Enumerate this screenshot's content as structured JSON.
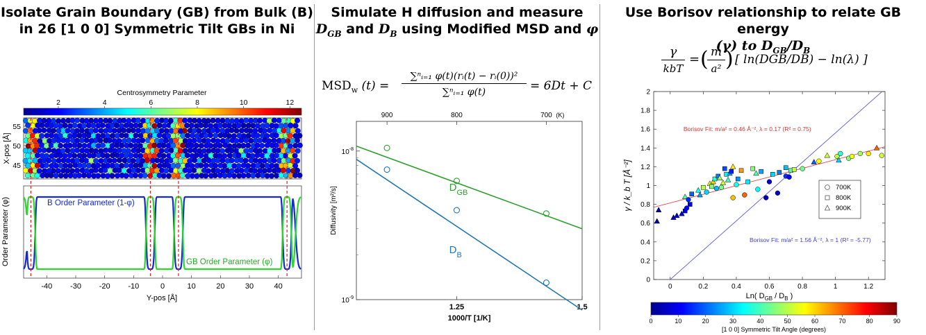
{
  "panel_a": {
    "title_line1": "Isolate Grain Boundary (GB) from Bulk (B)",
    "title_line2": "in 26 [1 0 0] Symmetric Tilt GBs in Ni",
    "colorbar": {
      "label": "Centrosymmetry Parameter",
      "ticks": [
        "2",
        "4",
        "6",
        "8",
        "10",
        "12"
      ],
      "range": [
        0.5,
        12.5
      ]
    },
    "atoms": {
      "ylabel": "X-pos [Å]",
      "yticks": [
        "55",
        "50",
        "45"
      ]
    },
    "order": {
      "ylabel": "Order Parameter (φ)",
      "xlabel": "Y-pos [Å]",
      "xticks": [
        "-40",
        "-30",
        "-20",
        "-10",
        "0",
        "10",
        "20",
        "30",
        "40"
      ],
      "b_label": "B Order Parameter (1-φ)",
      "gb_label": "GB Order Parameter (φ)",
      "gb_positions": [
        -45.5,
        -4.2,
        5.5,
        43.0
      ],
      "colors": {
        "b": "#1428d8",
        "gb": "#28d82a",
        "gb_line": "#e02020"
      }
    }
  },
  "panel_b": {
    "title_line1": "Simulate H diffusion and measure",
    "title_line2_sym1": "D",
    "title_line2_sub1": "GB",
    "title_line2_mid": " and ",
    "title_line2_sym2": "D",
    "title_line2_sub2": "B",
    "title_line2_tail": " using Modified MSD and ",
    "title_line2_phi": "φ",
    "equation": {
      "lhs": "MSD",
      "lhs_sub": "w",
      "lhs_arg": "(t) =",
      "numerator": "∑ⁿᵢ₌₁ φ(t)(rᵢ(t) − rᵢ(0))²",
      "denominator": "∑ⁿᵢ₌₁ φ(t)",
      "rhs": "= 6Dt + C"
    }
  },
  "panel_c": {
    "title_line1": "Use Borisov relationship to relate GB energy",
    "title_line2_a": "(γ) to ",
    "title_line2_sym1": "D",
    "title_line2_sub1": "GB",
    "title_line2_sep": "/",
    "title_line2_sym2": "D",
    "title_line2_sub2": "B",
    "equation": {
      "lhs_num": "γ",
      "lhs_den": "kbT",
      "eq": "=",
      "m_num": "m",
      "m_den": "a²",
      "bracket": "[ ln(DGB/DB) − ln(λ) ]"
    },
    "colorbar": {
      "label": "[1 0 0] Symmetric Tilt Angle (degrees)",
      "ticks": [
        "0",
        "10",
        "20",
        "30",
        "40",
        "50",
        "60",
        "70",
        "80",
        "90"
      ],
      "range": [
        0,
        90
      ]
    },
    "legend": {
      "items": [
        "700K",
        "800K",
        "900K"
      ]
    }
  },
  "chart_data": [
    {
      "type": "line",
      "id": "diffusivity",
      "xlabel": "1000/T [1/K]",
      "ylabel": "Diffusivity [m²/s]",
      "xlim": [
        1.05,
        1.5
      ],
      "ylim_log10": [
        -9,
        -7.8
      ],
      "x_ticks": [
        {
          "value": 1.25,
          "label": "1.25"
        },
        {
          "value": 1.5,
          "label": "1.5"
        }
      ],
      "y_ticks": [
        {
          "value": -8,
          "label": "10",
          "sup": "-8"
        },
        {
          "value": -9,
          "label": "10",
          "sup": "-9"
        }
      ],
      "top_axis": {
        "ticks": [
          {
            "T": 900,
            "label": "900"
          },
          {
            "T": 800,
            "label": "800"
          },
          {
            "T": 700,
            "label": "700"
          }
        ],
        "unit": "(K)"
      },
      "series": [
        {
          "name": "D_GB",
          "label_main": "D",
          "label_sub": "GB",
          "color": "#2aa02a",
          "x": [
            1.111,
            1.25,
            1.4286
          ],
          "y": [
            1.05e-08,
            6.3e-09,
            3.8e-09
          ],
          "fit": [
            [
              1.05,
              1.08e-08
            ],
            [
              1.5,
              3e-09
            ]
          ],
          "label_at": [
            1.235,
            5.4e-09
          ]
        },
        {
          "name": "D_B",
          "label_main": "D",
          "label_sub": "B",
          "color": "#1f77b4",
          "x": [
            1.111,
            1.25,
            1.4286
          ],
          "y": [
            7.5e-09,
            4e-09,
            1.3e-09
          ],
          "fit": [
            [
              1.05,
              8.8e-09
            ],
            [
              1.5,
              8.5e-10
            ]
          ],
          "label_at": [
            1.235,
            2.05e-09
          ]
        }
      ]
    },
    {
      "type": "scatter",
      "id": "borisov",
      "xlabel": "Ln( D_GB / D_B )",
      "xlabel_main": "Ln( D",
      "xlabel_sub1": "GB",
      "xlabel_mid": " / D",
      "xlabel_sub2": "B",
      "xlabel_tail": " )",
      "ylabel": "γ / k_b T [Å⁻²]",
      "xlim": [
        -0.1,
        1.3
      ],
      "ylim": [
        0,
        2
      ],
      "x_ticks": [
        "0",
        "0.2",
        "0.4",
        "0.6",
        "0.8",
        "1",
        "1.2"
      ],
      "y_ticks": [
        "0",
        "0.2",
        "0.4",
        "0.6",
        "0.8",
        "1",
        "1.2",
        "1.4",
        "1.6",
        "1.8",
        "2"
      ],
      "fits": [
        {
          "label": "Borisov Fit: m/a² = 0.46 Å⁻², λ = 0.17 (R² = 0.75)",
          "color": "#e03030",
          "slope": 0.46,
          "intercept": 0.815
        },
        {
          "label": "Borisov Fit: m/a² = 1.56 Å⁻², λ = 1 (R² = -5.77)",
          "color": "#4040e0",
          "slope": 1.56,
          "intercept": 0
        }
      ],
      "points": [
        {
          "x": -0.08,
          "y": 0.62,
          "a": 2,
          "m": "t"
        },
        {
          "x": -0.07,
          "y": 0.74,
          "a": 3,
          "m": "t"
        },
        {
          "x": 0.02,
          "y": 0.66,
          "a": 5,
          "m": "t"
        },
        {
          "x": 0.04,
          "y": 0.68,
          "a": 6,
          "m": "t"
        },
        {
          "x": 0.07,
          "y": 0.7,
          "a": 8,
          "m": "t"
        },
        {
          "x": 0.09,
          "y": 0.73,
          "a": 9,
          "m": "s"
        },
        {
          "x": 0.1,
          "y": 0.76,
          "a": 12,
          "m": "c"
        },
        {
          "x": 0.12,
          "y": 0.8,
          "a": 10,
          "m": "s"
        },
        {
          "x": 0.09,
          "y": 0.88,
          "a": 42,
          "m": "t"
        },
        {
          "x": 0.11,
          "y": 0.85,
          "a": 15,
          "m": "c"
        },
        {
          "x": 0.13,
          "y": 0.91,
          "a": 20,
          "m": "s"
        },
        {
          "x": 0.17,
          "y": 0.95,
          "a": 35,
          "m": "t"
        },
        {
          "x": 0.18,
          "y": 0.9,
          "a": 25,
          "m": "t"
        },
        {
          "x": 0.2,
          "y": 0.98,
          "a": 50,
          "m": "s"
        },
        {
          "x": 0.22,
          "y": 0.93,
          "a": 30,
          "m": "c"
        },
        {
          "x": 0.24,
          "y": 1.02,
          "a": 55,
          "m": "t"
        },
        {
          "x": 0.25,
          "y": 0.99,
          "a": 45,
          "m": "s"
        },
        {
          "x": 0.26,
          "y": 1.04,
          "a": 60,
          "m": "t"
        },
        {
          "x": 0.27,
          "y": 1.07,
          "a": 38,
          "m": "s"
        },
        {
          "x": 0.28,
          "y": 0.97,
          "a": 28,
          "m": "c"
        },
        {
          "x": 0.29,
          "y": 1.1,
          "a": 22,
          "m": "s"
        },
        {
          "x": 0.3,
          "y": 1.08,
          "a": 48,
          "m": "t"
        },
        {
          "x": 0.31,
          "y": 0.98,
          "a": 44,
          "m": "c"
        },
        {
          "x": 0.32,
          "y": 1.03,
          "a": 52,
          "m": "t"
        },
        {
          "x": 0.33,
          "y": 1.18,
          "a": 18,
          "m": "s"
        },
        {
          "x": 0.34,
          "y": 1.12,
          "a": 33,
          "m": "s"
        },
        {
          "x": 0.35,
          "y": 1.06,
          "a": 40,
          "m": "t"
        },
        {
          "x": 0.36,
          "y": 1.13,
          "a": 27,
          "m": "t"
        },
        {
          "x": 0.37,
          "y": 1.15,
          "a": 14,
          "m": "s"
        },
        {
          "x": 0.38,
          "y": 1.2,
          "a": 58,
          "m": "t"
        },
        {
          "x": 0.38,
          "y": 0.87,
          "a": 62,
          "m": "c"
        },
        {
          "x": 0.4,
          "y": 1.01,
          "a": 36,
          "m": "c"
        },
        {
          "x": 0.41,
          "y": 1.07,
          "a": 24,
          "m": "s"
        },
        {
          "x": 0.43,
          "y": 1.16,
          "a": 65,
          "m": "s"
        },
        {
          "x": 0.45,
          "y": 0.9,
          "a": 70,
          "m": "c"
        },
        {
          "x": 0.47,
          "y": 1.04,
          "a": 32,
          "m": "s"
        },
        {
          "x": 0.5,
          "y": 1.18,
          "a": 46,
          "m": "s"
        },
        {
          "x": 0.52,
          "y": 1.13,
          "a": 41,
          "m": "t"
        },
        {
          "x": 0.53,
          "y": 0.96,
          "a": 34,
          "m": "c"
        },
        {
          "x": 0.55,
          "y": 1.15,
          "a": 26,
          "m": "s"
        },
        {
          "x": 0.58,
          "y": 0.87,
          "a": 4,
          "m": "c"
        },
        {
          "x": 0.6,
          "y": 1.04,
          "a": 8,
          "m": "c"
        },
        {
          "x": 0.62,
          "y": 1.12,
          "a": 30,
          "m": "s"
        },
        {
          "x": 0.65,
          "y": 0.92,
          "a": 6,
          "m": "c"
        },
        {
          "x": 0.66,
          "y": 1.14,
          "a": 22,
          "m": "s"
        },
        {
          "x": 0.7,
          "y": 1.19,
          "a": 28,
          "m": "s"
        },
        {
          "x": 0.7,
          "y": 1.1,
          "a": 16,
          "m": "c"
        },
        {
          "x": 0.72,
          "y": 1.09,
          "a": 12,
          "m": "c"
        },
        {
          "x": 0.73,
          "y": 1.16,
          "a": 42,
          "m": "s"
        },
        {
          "x": 0.75,
          "y": 1.17,
          "a": 50,
          "m": "s"
        },
        {
          "x": 0.8,
          "y": 1.18,
          "a": 44,
          "m": "c"
        },
        {
          "x": 0.87,
          "y": 1.25,
          "a": 20,
          "m": "t"
        },
        {
          "x": 0.9,
          "y": 1.26,
          "a": 56,
          "m": "c"
        },
        {
          "x": 0.95,
          "y": 1.32,
          "a": 52,
          "m": "t"
        },
        {
          "x": 1.01,
          "y": 1.31,
          "a": 50,
          "m": "c"
        },
        {
          "x": 1.02,
          "y": 1.27,
          "a": 30,
          "m": "t"
        },
        {
          "x": 1.03,
          "y": 1.34,
          "a": 38,
          "m": "c"
        },
        {
          "x": 1.08,
          "y": 1.29,
          "a": 45,
          "m": "c"
        },
        {
          "x": 1.1,
          "y": 1.31,
          "a": 55,
          "m": "c"
        },
        {
          "x": 1.15,
          "y": 1.34,
          "a": 48,
          "m": "c"
        },
        {
          "x": 1.2,
          "y": 1.34,
          "a": 58,
          "m": "c"
        },
        {
          "x": 1.25,
          "y": 1.4,
          "a": 70,
          "m": "t"
        },
        {
          "x": 1.28,
          "y": 1.32,
          "a": 52,
          "m": "c"
        }
      ]
    }
  ]
}
